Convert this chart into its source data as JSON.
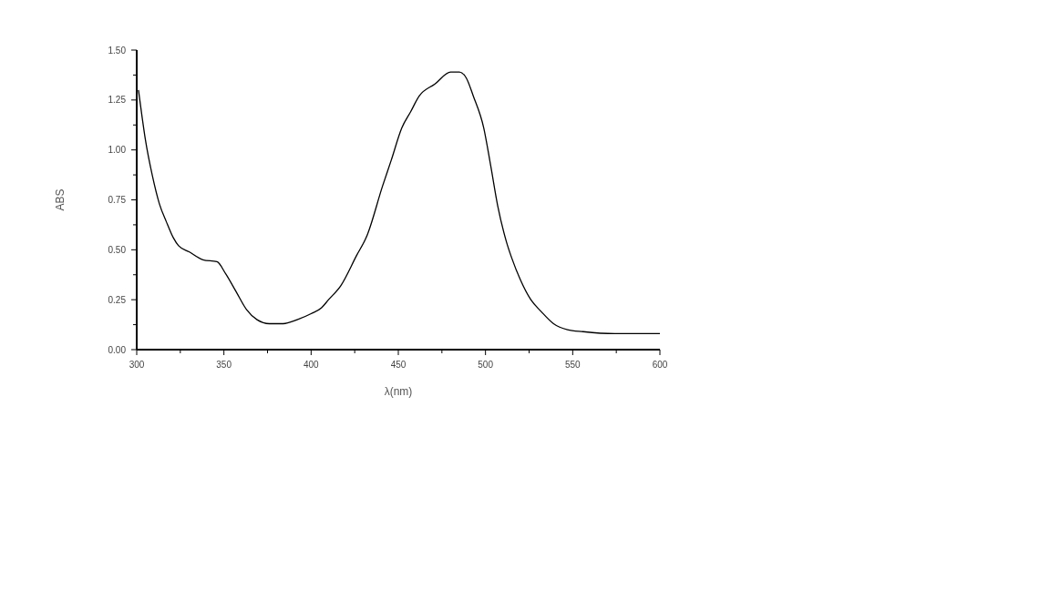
{
  "chart_data": {
    "type": "line",
    "xlabel": "λ(nm)",
    "ylabel": "ABS",
    "x": [
      301,
      303,
      305,
      309,
      313,
      317,
      321,
      324,
      330,
      338,
      346,
      351,
      357,
      363,
      369,
      376,
      384,
      392,
      400,
      406,
      410,
      417,
      426,
      432,
      441,
      446,
      452,
      457,
      462,
      471,
      480,
      485,
      489,
      493,
      499,
      503,
      507,
      512,
      515,
      520,
      526,
      532,
      539,
      547,
      556,
      574,
      600
    ],
    "series": [
      {
        "color": "#000000",
        "values": [
          1.3,
          1.17,
          1.05,
          0.87,
          0.73,
          0.64,
          0.56,
          0.52,
          0.49,
          0.45,
          0.44,
          0.38,
          0.29,
          0.2,
          0.15,
          0.13,
          0.13,
          0.15,
          0.18,
          0.21,
          0.25,
          0.32,
          0.47,
          0.57,
          0.82,
          0.95,
          1.11,
          1.19,
          1.27,
          1.33,
          1.39,
          1.39,
          1.36,
          1.27,
          1.11,
          0.92,
          0.72,
          0.54,
          0.46,
          0.35,
          0.25,
          0.19,
          0.13,
          0.1,
          0.09,
          0.08,
          0.08
        ]
      }
    ],
    "xlim": [
      300,
      600
    ],
    "xticks": [
      300,
      {
        "value": 325,
        "label": null
      },
      350,
      {
        "value": 375,
        "label": null
      },
      400,
      {
        "value": 425,
        "label": null
      },
      450,
      {
        "value": 475,
        "label": null
      },
      500,
      {
        "value": 525,
        "label": null
      },
      550,
      {
        "value": 575,
        "label": null
      },
      600
    ],
    "ylim": [
      0,
      1.5
    ],
    "yticks": [
      {
        "value": 0,
        "label": "0.00"
      },
      {
        "value": 0.125,
        "label": null
      },
      {
        "value": 0.25,
        "label": "0.25"
      },
      {
        "value": 0.375,
        "label": null
      },
      {
        "value": 0.5,
        "label": "0.50"
      },
      {
        "value": 0.625,
        "label": null
      },
      {
        "value": 0.75,
        "label": "0.75"
      },
      {
        "value": 0.875,
        "label": null
      },
      {
        "value": 1,
        "label": "1.00"
      },
      {
        "value": 1.125,
        "label": null
      },
      {
        "value": 1.25,
        "label": "1.25"
      },
      {
        "value": 1.375,
        "label": null
      },
      {
        "value": 1.5,
        "label": "1.50"
      }
    ],
    "grid": false,
    "marker": "none",
    "line_style": "solid"
  }
}
